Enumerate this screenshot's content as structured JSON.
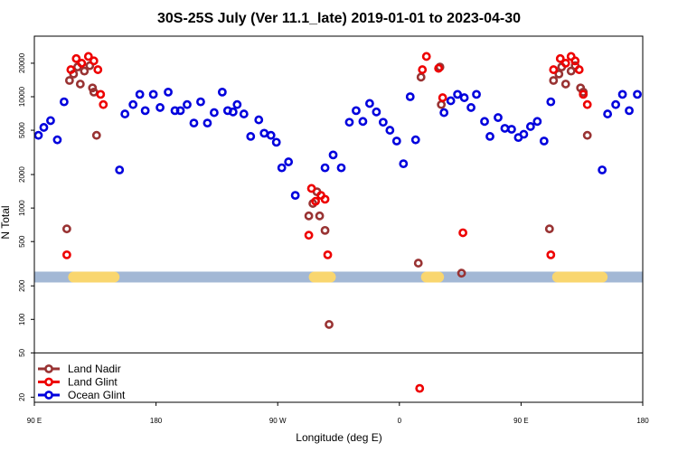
{
  "chart_data": {
    "type": "scatter",
    "title": "30S-25S July (Ver 11.1_late)   2019-01-01 to 2023-04-30",
    "xlabel": "Longitude (deg E)",
    "ylabel": "N Total",
    "y_scale": "log",
    "xlim": [
      90,
      540
    ],
    "ylim": [
      18,
      35000
    ],
    "x_ticks": [
      {
        "value": 90,
        "label": "90 E"
      },
      {
        "value": 180,
        "label": "180"
      },
      {
        "value": 270,
        "label": "90 W"
      },
      {
        "value": 360,
        "label": "0"
      },
      {
        "value": 450,
        "label": "90 E"
      },
      {
        "value": 540,
        "label": "180"
      }
    ],
    "y_ticks": [
      {
        "value": 20,
        "label": "20"
      },
      {
        "value": 50,
        "label": "50"
      },
      {
        "value": 100,
        "label": "100"
      },
      {
        "value": 200,
        "label": "200"
      },
      {
        "value": 500,
        "label": "500"
      },
      {
        "value": 1000,
        "label": "1000"
      },
      {
        "value": 2000,
        "label": "2000"
      },
      {
        "value": 5000,
        "label": "5000"
      },
      {
        "value": 10000,
        "label": "10000"
      },
      {
        "value": 20000,
        "label": "20000"
      }
    ],
    "legend_divider_y": 50,
    "legend_position": "bottom-left",
    "land_band": {
      "y": 240,
      "ocean_color": "#a3b8d5",
      "land_color": "#f9d66f",
      "land_segments": [
        [
          115,
          153
        ],
        [
          293,
          313
        ],
        [
          376,
          393
        ],
        [
          473,
          514
        ]
      ]
    },
    "series": [
      {
        "name": "Land Nadir",
        "color": "#993333",
        "points": [
          [
            114,
            650
          ],
          [
            116,
            14000
          ],
          [
            119,
            16000
          ],
          [
            122,
            18500
          ],
          [
            124,
            13000
          ],
          [
            127,
            17000
          ],
          [
            131,
            19000
          ],
          [
            133,
            12000
          ],
          [
            134,
            11000
          ],
          [
            136,
            4500
          ],
          [
            293,
            850
          ],
          [
            296,
            1100
          ],
          [
            299,
            1400
          ],
          [
            301,
            850
          ],
          [
            305,
            630
          ],
          [
            308,
            90
          ],
          [
            374,
            320
          ],
          [
            376,
            15000
          ],
          [
            390,
            18500
          ],
          [
            391,
            8500
          ],
          [
            406,
            260
          ],
          [
            471,
            650
          ],
          [
            474,
            14000
          ],
          [
            478,
            16000
          ],
          [
            480,
            18500
          ],
          [
            483,
            13000
          ],
          [
            487,
            17000
          ],
          [
            490,
            19000
          ],
          [
            494,
            12000
          ],
          [
            496,
            11000
          ],
          [
            499,
            4500
          ]
        ]
      },
      {
        "name": "Land Glint",
        "color": "#ee0000",
        "points": [
          [
            114,
            380
          ],
          [
            117,
            17500
          ],
          [
            121,
            22000
          ],
          [
            125,
            20000
          ],
          [
            130,
            23000
          ],
          [
            134,
            21000
          ],
          [
            137,
            17500
          ],
          [
            139,
            10500
          ],
          [
            141,
            8500
          ],
          [
            293,
            570
          ],
          [
            295,
            1500
          ],
          [
            298,
            1150
          ],
          [
            302,
            1300
          ],
          [
            305,
            1200
          ],
          [
            307,
            380
          ],
          [
            375,
            24
          ],
          [
            377,
            17500
          ],
          [
            380,
            23000
          ],
          [
            389,
            18000
          ],
          [
            392,
            9800
          ],
          [
            407,
            600
          ],
          [
            472,
            380
          ],
          [
            474,
            17500
          ],
          [
            479,
            22000
          ],
          [
            483,
            20000
          ],
          [
            487,
            23000
          ],
          [
            490,
            21000
          ],
          [
            493,
            17500
          ],
          [
            496,
            10500
          ],
          [
            499,
            8500
          ]
        ]
      },
      {
        "name": "Ocean Glint",
        "color": "#0000dd",
        "points": [
          [
            93,
            4500
          ],
          [
            97,
            5300
          ],
          [
            102,
            6100
          ],
          [
            107,
            4100
          ],
          [
            112,
            9000
          ],
          [
            153,
            2200
          ],
          [
            157,
            7000
          ],
          [
            163,
            8500
          ],
          [
            168,
            10500
          ],
          [
            172,
            7500
          ],
          [
            178,
            10500
          ],
          [
            183,
            8000
          ],
          [
            189,
            11000
          ],
          [
            194,
            7500
          ],
          [
            198,
            7500
          ],
          [
            203,
            8500
          ],
          [
            208,
            5800
          ],
          [
            213,
            9000
          ],
          [
            218,
            5800
          ],
          [
            223,
            7200
          ],
          [
            229,
            11000
          ],
          [
            233,
            7500
          ],
          [
            237,
            7300
          ],
          [
            240,
            8500
          ],
          [
            245,
            7000
          ],
          [
            250,
            4400
          ],
          [
            256,
            6200
          ],
          [
            260,
            4700
          ],
          [
            265,
            4500
          ],
          [
            269,
            3900
          ],
          [
            273,
            2300
          ],
          [
            278,
            2600
          ],
          [
            283,
            1300
          ],
          [
            305,
            2300
          ],
          [
            311,
            3000
          ],
          [
            317,
            2300
          ],
          [
            323,
            5900
          ],
          [
            328,
            7500
          ],
          [
            333,
            6000
          ],
          [
            338,
            8700
          ],
          [
            343,
            7300
          ],
          [
            348,
            5900
          ],
          [
            353,
            5000
          ],
          [
            358,
            4000
          ],
          [
            363,
            2500
          ],
          [
            368,
            10000
          ],
          [
            372,
            4100
          ],
          [
            393,
            7200
          ],
          [
            398,
            9200
          ],
          [
            403,
            10500
          ],
          [
            408,
            9800
          ],
          [
            413,
            8000
          ],
          [
            417,
            10500
          ],
          [
            423,
            6000
          ],
          [
            427,
            4400
          ],
          [
            433,
            6500
          ],
          [
            438,
            5200
          ],
          [
            443,
            5100
          ],
          [
            448,
            4300
          ],
          [
            452,
            4600
          ],
          [
            457,
            5400
          ],
          [
            462,
            6000
          ],
          [
            467,
            4000
          ],
          [
            472,
            9000
          ],
          [
            510,
            2200
          ],
          [
            514,
            7000
          ],
          [
            520,
            8500
          ],
          [
            525,
            10500
          ],
          [
            530,
            7500
          ],
          [
            536,
            10500
          ]
        ]
      }
    ]
  }
}
